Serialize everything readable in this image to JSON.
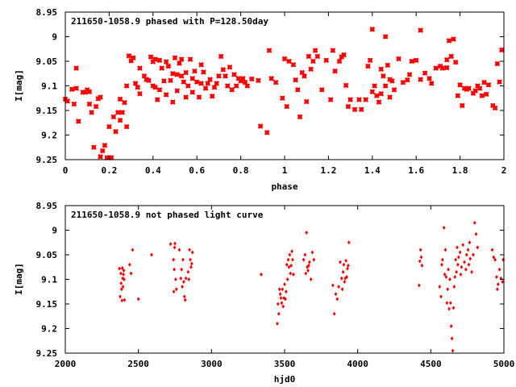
{
  "chart_data": [
    {
      "type": "scatter",
      "title": "211650-1058.9 phased with P=128.50day",
      "xlabel": "phase",
      "ylabel": "I[mag]",
      "xlim": [
        0,
        2
      ],
      "ylim": [
        9.25,
        8.95
      ],
      "y_inverted": true,
      "grid": false,
      "marker": "asterisk",
      "color": "#ff0000",
      "xticks": [
        "0",
        "0.2",
        "0.4",
        "0.6",
        "0.8",
        "1",
        "1.2",
        "1.4",
        "1.6",
        "1.8",
        "2"
      ],
      "yticks": [
        "8.95",
        "9",
        "9.05",
        "9.1",
        "9.15",
        "9.2",
        "9.25"
      ],
      "points": [
        [
          0.0,
          9.127
        ],
        [
          0.01,
          9.131
        ],
        [
          0.03,
          9.107
        ],
        [
          0.04,
          9.137
        ],
        [
          0.05,
          9.105
        ],
        [
          0.05,
          9.064
        ],
        [
          0.06,
          9.172
        ],
        [
          0.08,
          9.113
        ],
        [
          0.09,
          9.113
        ],
        [
          0.1,
          9.108
        ],
        [
          0.11,
          9.112
        ],
        [
          0.11,
          9.137
        ],
        [
          0.12,
          9.154
        ],
        [
          0.13,
          9.225
        ],
        [
          0.14,
          9.142
        ],
        [
          0.15,
          9.126
        ],
        [
          0.16,
          9.123
        ],
        [
          0.16,
          9.244
        ],
        [
          0.17,
          9.232
        ],
        [
          0.18,
          9.221
        ],
        [
          0.19,
          9.246
        ],
        [
          0.2,
          9.246
        ],
        [
          0.21,
          9.246
        ],
        [
          0.2,
          9.183
        ],
        [
          0.22,
          9.163
        ],
        [
          0.23,
          9.193
        ],
        [
          0.24,
          9.154
        ],
        [
          0.25,
          9.127
        ],
        [
          0.25,
          9.17
        ],
        [
          0.26,
          9.154
        ],
        [
          0.27,
          9.134
        ],
        [
          0.28,
          9.183
        ],
        [
          0.28,
          9.1
        ],
        [
          0.29,
          9.039
        ],
        [
          0.3,
          9.049
        ],
        [
          0.31,
          9.043
        ],
        [
          0.32,
          9.095
        ],
        [
          0.33,
          9.103
        ],
        [
          0.34,
          9.116
        ],
        [
          0.34,
          9.064
        ],
        [
          0.36,
          9.08
        ],
        [
          0.37,
          9.087
        ],
        [
          0.38,
          9.089
        ],
        [
          0.39,
          9.041
        ],
        [
          0.4,
          9.1
        ],
        [
          0.4,
          9.051
        ],
        [
          0.41,
          9.046
        ],
        [
          0.41,
          9.103
        ],
        [
          0.42,
          9.128
        ],
        [
          0.43,
          9.048
        ],
        [
          0.43,
          9.108
        ],
        [
          0.44,
          9.064
        ],
        [
          0.45,
          9.09
        ],
        [
          0.46,
          9.051
        ],
        [
          0.46,
          9.118
        ],
        [
          0.47,
          9.06
        ],
        [
          0.48,
          9.089
        ],
        [
          0.49,
          9.133
        ],
        [
          0.49,
          9.075
        ],
        [
          0.5,
          9.043
        ],
        [
          0.51,
          9.077
        ],
        [
          0.51,
          9.11
        ],
        [
          0.52,
          9.054
        ],
        [
          0.53,
          9.08
        ],
        [
          0.53,
          9.046
        ],
        [
          0.54,
          9.092
        ],
        [
          0.55,
          9.123
        ],
        [
          0.55,
          9.073
        ],
        [
          0.56,
          9.1
        ],
        [
          0.57,
          9.046
        ],
        [
          0.58,
          9.085
        ],
        [
          0.58,
          9.113
        ],
        [
          0.59,
          9.07
        ],
        [
          0.6,
          9.092
        ],
        [
          0.61,
          9.123
        ],
        [
          0.62,
          9.095
        ],
        [
          0.62,
          9.057
        ],
        [
          0.63,
          9.072
        ],
        [
          0.64,
          9.105
        ],
        [
          0.65,
          9.095
        ],
        [
          0.66,
          9.087
        ],
        [
          0.67,
          9.121
        ],
        [
          0.68,
          9.103
        ],
        [
          0.69,
          9.095
        ],
        [
          0.7,
          9.08
        ],
        [
          0.71,
          9.04
        ],
        [
          0.72,
          9.067
        ],
        [
          0.73,
          9.08
        ],
        [
          0.74,
          9.1
        ],
        [
          0.75,
          9.062
        ],
        [
          0.76,
          9.108
        ],
        [
          0.77,
          9.077
        ],
        [
          0.78,
          9.1
        ],
        [
          0.79,
          9.085
        ],
        [
          0.8,
          9.09
        ],
        [
          0.81,
          9.085
        ],
        [
          0.82,
          9.093
        ],
        [
          0.83,
          9.1
        ],
        [
          0.85,
          9.086
        ],
        [
          0.88,
          9.089
        ],
        [
          0.89,
          9.182
        ],
        [
          0.92,
          9.195
        ],
        [
          0.93,
          9.028
        ],
        [
          0.94,
          9.085
        ],
        [
          0.96,
          9.093
        ],
        [
          0.99,
          9.125
        ],
        [
          1.0,
          9.045
        ],
        [
          1.01,
          9.142
        ],
        [
          1.02,
          9.05
        ],
        [
          1.04,
          9.057
        ],
        [
          1.05,
          9.088
        ],
        [
          1.06,
          9.108
        ],
        [
          1.07,
          9.163
        ],
        [
          1.08,
          9.073
        ],
        [
          1.09,
          9.08
        ],
        [
          1.1,
          9.132
        ],
        [
          1.11,
          9.04
        ],
        [
          1.12,
          9.066
        ],
        [
          1.13,
          9.05
        ],
        [
          1.14,
          9.028
        ],
        [
          1.15,
          9.04
        ],
        [
          1.17,
          9.108
        ],
        [
          1.19,
          9.048
        ],
        [
          1.21,
          9.128
        ],
        [
          1.22,
          9.028
        ],
        [
          1.23,
          9.07
        ],
        [
          1.25,
          9.05
        ],
        [
          1.26,
          9.041
        ],
        [
          1.27,
          9.037
        ],
        [
          1.28,
          9.099
        ],
        [
          1.29,
          9.142
        ],
        [
          1.3,
          9.128
        ],
        [
          1.32,
          9.148
        ],
        [
          1.34,
          9.128
        ],
        [
          1.35,
          9.148
        ],
        [
          1.37,
          9.128
        ],
        [
          1.38,
          9.06
        ],
        [
          1.39,
          9.048
        ],
        [
          1.4,
          9.112
        ],
        [
          1.4,
          8.985
        ],
        [
          1.41,
          9.1
        ],
        [
          1.42,
          9.12
        ],
        [
          1.43,
          9.133
        ],
        [
          1.44,
          9.066
        ],
        [
          1.44,
          9.116
        ],
        [
          1.45,
          9.08
        ],
        [
          1.46,
          9.1
        ],
        [
          1.46,
          9.0
        ],
        [
          1.47,
          9.058
        ],
        [
          1.48,
          9.123
        ],
        [
          1.48,
          9.087
        ],
        [
          1.49,
          9.09
        ],
        [
          1.5,
          9.108
        ],
        [
          1.52,
          9.045
        ],
        [
          1.54,
          9.093
        ],
        [
          1.56,
          9.088
        ],
        [
          1.57,
          9.077
        ],
        [
          1.58,
          9.05
        ],
        [
          1.6,
          9.048
        ],
        [
          1.62,
          9.087
        ],
        [
          1.62,
          8.987
        ],
        [
          1.64,
          9.074
        ],
        [
          1.66,
          9.085
        ],
        [
          1.67,
          9.095
        ],
        [
          1.69,
          9.064
        ],
        [
          1.71,
          9.06
        ],
        [
          1.72,
          9.064
        ],
        [
          1.74,
          9.063
        ],
        [
          1.74,
          9.047
        ],
        [
          1.75,
          9.008
        ],
        [
          1.76,
          9.04
        ],
        [
          1.77,
          9.005
        ],
        [
          1.78,
          9.052
        ],
        [
          1.79,
          9.12
        ],
        [
          1.8,
          9.098
        ],
        [
          1.81,
          9.14
        ],
        [
          1.82,
          9.105
        ],
        [
          1.83,
          9.107
        ],
        [
          1.84,
          9.105
        ],
        [
          1.86,
          9.115
        ],
        [
          1.87,
          9.11
        ],
        [
          1.88,
          9.1
        ],
        [
          1.89,
          9.105
        ],
        [
          1.9,
          9.12
        ],
        [
          1.91,
          9.093
        ],
        [
          1.92,
          9.117
        ],
        [
          1.93,
          9.098
        ],
        [
          1.95,
          9.14
        ],
        [
          1.96,
          9.145
        ],
        [
          1.97,
          9.055
        ],
        [
          1.98,
          9.092
        ],
        [
          1.99,
          9.027
        ]
      ]
    },
    {
      "type": "scatter",
      "title": "211650-1058.9 not phased light curve",
      "xlabel": "hjd0",
      "ylabel": "I[mag]",
      "xlim": [
        2000,
        5000
      ],
      "ylim": [
        9.25,
        8.95
      ],
      "y_inverted": true,
      "grid": false,
      "marker": "diamond",
      "color": "#ff0000",
      "xticks": [
        "2000",
        "2500",
        "3000",
        "3500",
        "4000",
        "4500",
        "5000"
      ],
      "yticks": [
        "8.95",
        "9",
        "9.05",
        "9.1",
        "9.15",
        "9.2",
        "9.25"
      ],
      "points": [
        [
          2370,
          9.078
        ],
        [
          2375,
          9.135
        ],
        [
          2380,
          9.088
        ],
        [
          2382,
          9.108
        ],
        [
          2385,
          9.12
        ],
        [
          2388,
          9.143
        ],
        [
          2390,
          9.077
        ],
        [
          2392,
          9.098
        ],
        [
          2395,
          9.115
        ],
        [
          2398,
          9.09
        ],
        [
          2400,
          9.082
        ],
        [
          2402,
          9.1
        ],
        [
          2405,
          9.142
        ],
        [
          2440,
          9.07
        ],
        [
          2450,
          9.088
        ],
        [
          2460,
          9.04
        ],
        [
          2500,
          9.14
        ],
        [
          2590,
          9.05
        ],
        [
          2720,
          9.028
        ],
        [
          2740,
          9.06
        ],
        [
          2742,
          9.125
        ],
        [
          2745,
          9.08
        ],
        [
          2748,
          9.035
        ],
        [
          2750,
          9.027
        ],
        [
          2755,
          9.1
        ],
        [
          2760,
          9.12
        ],
        [
          2780,
          9.04
        ],
        [
          2790,
          9.098
        ],
        [
          2795,
          9.08
        ],
        [
          2800,
          9.115
        ],
        [
          2805,
          9.06
        ],
        [
          2810,
          9.105
        ],
        [
          2815,
          9.135
        ],
        [
          2820,
          9.142
        ],
        [
          2825,
          9.098
        ],
        [
          2840,
          9.085
        ],
        [
          2845,
          9.1
        ],
        [
          2850,
          9.04
        ],
        [
          2855,
          9.06
        ],
        [
          2860,
          9.075
        ],
        [
          2865,
          9.068
        ],
        [
          2870,
          9.045
        ],
        [
          3340,
          9.09
        ],
        [
          3450,
          9.19
        ],
        [
          3455,
          9.15
        ],
        [
          3460,
          9.17
        ],
        [
          3465,
          9.12
        ],
        [
          3470,
          9.13
        ],
        [
          3475,
          9.138
        ],
        [
          3480,
          9.148
        ],
        [
          3485,
          9.12
        ],
        [
          3490,
          9.155
        ],
        [
          3495,
          9.138
        ],
        [
          3500,
          9.11
        ],
        [
          3505,
          9.14
        ],
        [
          3510,
          9.125
        ],
        [
          3515,
          9.07
        ],
        [
          3520,
          9.1
        ],
        [
          3525,
          9.06
        ],
        [
          3530,
          9.075
        ],
        [
          3535,
          9.05
        ],
        [
          3540,
          9.088
        ],
        [
          3545,
          9.072
        ],
        [
          3550,
          9.043
        ],
        [
          3555,
          9.06
        ],
        [
          3560,
          9.09
        ],
        [
          3630,
          9.06
        ],
        [
          3640,
          9.05
        ],
        [
          3645,
          9.088
        ],
        [
          3650,
          9.005
        ],
        [
          3655,
          9.075
        ],
        [
          3660,
          9.082
        ],
        [
          3665,
          9.072
        ],
        [
          3670,
          9.065
        ],
        [
          3680,
          9.1
        ],
        [
          3690,
          9.045
        ],
        [
          3700,
          9.06
        ],
        [
          3830,
          9.112
        ],
        [
          3840,
          9.17
        ],
        [
          3850,
          9.13
        ],
        [
          3860,
          9.14
        ],
        [
          3870,
          9.115
        ],
        [
          3880,
          9.065
        ],
        [
          3890,
          9.098
        ],
        [
          3895,
          9.12
        ],
        [
          3900,
          9.085
        ],
        [
          3905,
          9.07
        ],
        [
          3910,
          9.105
        ],
        [
          3915,
          9.098
        ],
        [
          3920,
          9.062
        ],
        [
          3925,
          9.095
        ],
        [
          3930,
          9.078
        ],
        [
          3935,
          9.072
        ],
        [
          3940,
          9.025
        ],
        [
          4420,
          9.112
        ],
        [
          4425,
          9.063
        ],
        [
          4430,
          9.04
        ],
        [
          4435,
          9.055
        ],
        [
          4440,
          9.072
        ],
        [
          4560,
          9.115
        ],
        [
          4570,
          9.135
        ],
        [
          4575,
          9.07
        ],
        [
          4580,
          9.06
        ],
        [
          4590,
          8.995
        ],
        [
          4595,
          9.09
        ],
        [
          4600,
          9.04
        ],
        [
          4605,
          9.095
        ],
        [
          4610,
          9.148
        ],
        [
          4615,
          9.12
        ],
        [
          4620,
          9.08
        ],
        [
          4625,
          9.16
        ],
        [
          4630,
          9.1
        ],
        [
          4635,
          9.148
        ],
        [
          4640,
          9.195
        ],
        [
          4645,
          9.22
        ],
        [
          4650,
          9.245
        ],
        [
          4655,
          9.158
        ],
        [
          4660,
          9.115
        ],
        [
          4665,
          9.095
        ],
        [
          4670,
          9.06
        ],
        [
          4675,
          9.085
        ],
        [
          4680,
          9.035
        ],
        [
          4685,
          9.07
        ],
        [
          4690,
          9.055
        ],
        [
          4700,
          9.045
        ],
        [
          4705,
          9.09
        ],
        [
          4710,
          9.075
        ],
        [
          4720,
          9.03
        ],
        [
          4730,
          9.065
        ],
        [
          4740,
          9.08
        ],
        [
          4745,
          9.05
        ],
        [
          4755,
          9.04
        ],
        [
          4760,
          9.07
        ],
        [
          4765,
          9.025
        ],
        [
          4770,
          9.058
        ],
        [
          4780,
          9.085
        ],
        [
          4790,
          9.05
        ],
        [
          4800,
          8.985
        ],
        [
          4810,
          9.008
        ],
        [
          4820,
          9.035
        ],
        [
          4920,
          9.04
        ],
        [
          4930,
          9.055
        ],
        [
          4940,
          9.06
        ],
        [
          4950,
          9.095
        ],
        [
          4955,
          9.12
        ],
        [
          4960,
          9.11
        ],
        [
          4970,
          9.08
        ],
        [
          4980,
          9.098
        ],
        [
          4990,
          9.105
        ],
        [
          4995,
          9.06
        ]
      ]
    }
  ]
}
